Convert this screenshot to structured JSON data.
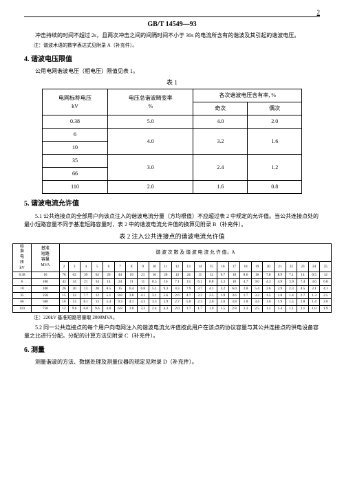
{
  "page_number": "2",
  "doc_id": "GB/T 14549—93",
  "intro_para": "冲击持续的时间不超过 2s，且两次冲击之间的间隔时间不小于 30s 的电流所含有的谐波及其引起的谐波电压。",
  "intro_note": "注：谐波术语的数字表达式见附录 A（补充件）。",
  "s4": {
    "title": "4. 谐波电压限值",
    "line": "公用电网谐波电压（相电压）限值见表 1。",
    "caption": "表 1",
    "h_col1a": "电网标称电压",
    "h_col1b": "kV",
    "h_col2a": "电压总谐波畸变率",
    "h_col2b": "%",
    "h_col3": "各次谐波电压含有率, %",
    "h_odd": "奇次",
    "h_even": "偶次",
    "rows": [
      {
        "v": "0.38",
        "thd": "5.0",
        "odd": "4.0",
        "even": "2.0"
      },
      {
        "v": "6",
        "thd": "4.0",
        "odd": "3.2",
        "even": "1.6"
      },
      {
        "v": "10",
        "thd": "",
        "odd": "",
        "even": ""
      },
      {
        "v": "35",
        "thd": "3.0",
        "odd": "2.4",
        "even": "1.2"
      },
      {
        "v": "66",
        "thd": "",
        "odd": "",
        "even": ""
      },
      {
        "v": "110",
        "thd": "2.0",
        "odd": "1.6",
        "even": "0.8"
      }
    ]
  },
  "s5": {
    "title": "5. 谐波电流允许值",
    "p1": "5.1 公共连接点的全部用户向该点注入的谐波电流分量（方均根值）不应超过表 2 中规定的允许值。当公共连接点处的最小短路容量不同于基准短路容量时，表 2 中的谐波电流允许值的换算见附录 B（补充件）。",
    "caption": "表 2 注入公共连接点的谐波电流允许值",
    "vh1a": "标",
    "vh1b": "准",
    "vh1c": "电",
    "vh1d": "压",
    "vh1e": "kV",
    "vh2a": "基准",
    "vh2b": "短路",
    "vh2c": "容量",
    "vh2d": "MVA",
    "hdr": "谐 波 次 数 及 谐 波 电 流 允 许 值，A",
    "orders": [
      "2",
      "3",
      "4",
      "5",
      "6",
      "7",
      "8",
      "9",
      "10",
      "11",
      "12",
      "13",
      "14",
      "15",
      "16",
      "17",
      "18",
      "19",
      "20",
      "21",
      "22",
      "23",
      "24",
      "25"
    ],
    "rows": [
      {
        "v": "0.38",
        "s": "10",
        "c": [
          "78",
          "62",
          "39",
          "62",
          "26",
          "44",
          "19",
          "21",
          "16",
          "28",
          "13",
          "24",
          "11",
          "12",
          "9.7",
          "18",
          "8.6",
          "16",
          "7.8",
          "8.9",
          "7.1",
          "14",
          "6.5",
          "12"
        ]
      },
      {
        "v": "6",
        "s": "100",
        "c": [
          "43",
          "34",
          "21",
          "34",
          "14",
          "24",
          "11",
          "11",
          "8.5",
          "16",
          "7.1",
          "13",
          "6.1",
          "6.8",
          "5.3",
          "10",
          "4.7",
          "9.0",
          "4.3",
          "4.9",
          "3.9",
          "7.4",
          "3.6",
          "6.8"
        ]
      },
      {
        "v": "10",
        "s": "100",
        "c": [
          "26",
          "20",
          "13",
          "20",
          "8.5",
          "15",
          "6.4",
          "6.8",
          "5.1",
          "9.3",
          "4.3",
          "7.9",
          "3.7",
          "4.1",
          "3.2",
          "6.0",
          "2.8",
          "5.4",
          "2.6",
          "2.9",
          "2.3",
          "4.5",
          "2.1",
          "4.1"
        ]
      },
      {
        "v": "35",
        "s": "250",
        "c": [
          "15",
          "12",
          "7.7",
          "12",
          "5.1",
          "8.8",
          "3.8",
          "4.1",
          "3.1",
          "5.6",
          "2.6",
          "4.7",
          "2.2",
          "2.5",
          "1.9",
          "3.6",
          "1.7",
          "3.2",
          "1.5",
          "1.8",
          "1.4",
          "2.7",
          "1.3",
          "2.5"
        ]
      },
      {
        "v": "66",
        "s": "500",
        "c": [
          "16",
          "13",
          "8.1",
          "13",
          "5.4",
          "9.3",
          "4.1",
          "4.3",
          "3.3",
          "5.9",
          "2.7",
          "5.0",
          "2.3",
          "2.6",
          "2.0",
          "3.8",
          "1.8",
          "3.4",
          "1.6",
          "1.9",
          "1.5",
          "2.8",
          "1.4",
          "2.6"
        ]
      },
      {
        "v": "110",
        "s": "750",
        "c": [
          "12",
          "9.6",
          "6.0",
          "9.6",
          "4.0",
          "6.8",
          "3.0",
          "3.2",
          "2.4",
          "4.3",
          "2.0",
          "3.7",
          "1.7",
          "1.9",
          "1.5",
          "2.8",
          "1.3",
          "2.5",
          "1.2",
          "1.4",
          "1.1",
          "2.1",
          "1.0",
          "1.9"
        ]
      }
    ],
    "note": "注：220kV 基准短路容量取 2000MVA。",
    "p2": "5.2 同一公共连接点的每个用户向电网注入的谐波电流允许值按此用户在该点的协议容量与其公共连接点的供电设备容量之比进行分配。分配的计算方法见附录 C（补充件）。"
  },
  "s6": {
    "title": "6. 测量",
    "p": "测量谐波的方法、数据处理及测量仪器的规定见附录 D（补充件）。"
  }
}
